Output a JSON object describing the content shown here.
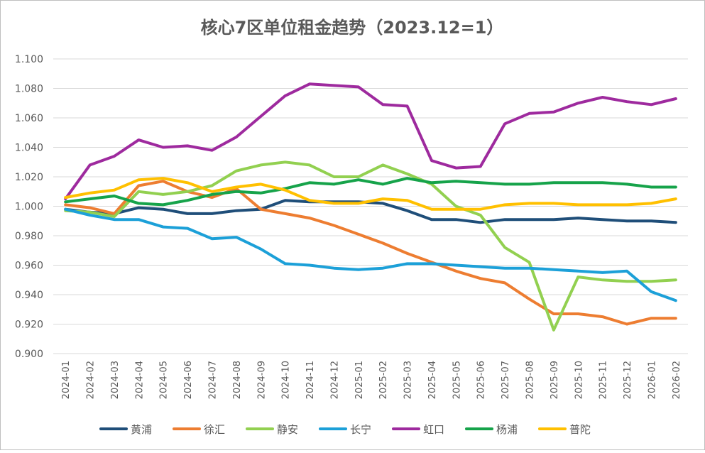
{
  "chart_data": {
    "type": "line",
    "title": "核心7区单位租金趋势（2023.12=1）",
    "xlabel": "",
    "ylabel": "",
    "ylim": [
      0.9,
      1.1
    ],
    "ytick_step": 0.02,
    "ytick_labels": [
      "0.900",
      "0.920",
      "0.940",
      "0.960",
      "0.980",
      "1.000",
      "1.020",
      "1.040",
      "1.060",
      "1.080",
      "1.100"
    ],
    "grid": "horizontal",
    "legend_position": "bottom",
    "categories": [
      "2024-01",
      "2024-02",
      "2024-03",
      "2024-04",
      "2024-05",
      "2024-06",
      "2024-07",
      "2024-08",
      "2024-09",
      "2024-10",
      "2024-11",
      "2024-12",
      "2025-01",
      "2025-02",
      "2025-03",
      "2025-04",
      "2025-05",
      "2025-06",
      "2025-07",
      "2025-08",
      "2025-09",
      "2025-10",
      "2025-11",
      "2025-12",
      "2026-01",
      "2026-02"
    ],
    "series": [
      {
        "name": "黄浦",
        "color": "#1f4e79",
        "values": [
          0.998,
          0.996,
          0.995,
          0.999,
          0.998,
          0.995,
          0.995,
          0.997,
          0.998,
          1.004,
          1.003,
          1.003,
          1.003,
          1.002,
          0.997,
          0.991,
          0.991,
          0.989,
          0.991,
          0.991,
          0.991,
          0.992,
          0.991,
          0.99,
          0.99,
          0.989
        ]
      },
      {
        "name": "徐汇",
        "color": "#ed7d31",
        "values": [
          1.001,
          0.999,
          0.995,
          1.014,
          1.017,
          1.01,
          1.006,
          1.012,
          0.998,
          0.995,
          0.992,
          0.987,
          0.981,
          0.975,
          0.968,
          0.962,
          0.956,
          0.951,
          0.948,
          0.937,
          0.927,
          0.927,
          0.925,
          0.92,
          0.924,
          0.924
        ]
      },
      {
        "name": "静安",
        "color": "#92d050",
        "values": [
          0.997,
          0.996,
          0.993,
          1.01,
          1.008,
          1.01,
          1.014,
          1.024,
          1.028,
          1.03,
          1.028,
          1.02,
          1.02,
          1.028,
          1.022,
          1.015,
          1.0,
          0.994,
          0.972,
          0.962,
          0.916,
          0.952,
          0.95,
          0.949,
          0.949,
          0.95
        ]
      },
      {
        "name": "长宁",
        "color": "#1ca0d8",
        "values": [
          0.998,
          0.994,
          0.991,
          0.991,
          0.986,
          0.985,
          0.978,
          0.979,
          0.971,
          0.961,
          0.96,
          0.958,
          0.957,
          0.958,
          0.961,
          0.961,
          0.96,
          0.959,
          0.958,
          0.958,
          0.957,
          0.956,
          0.955,
          0.956,
          0.942,
          0.936
        ]
      },
      {
        "name": "虹口",
        "color": "#9e2a9e",
        "values": [
          1.005,
          1.028,
          1.034,
          1.045,
          1.04,
          1.041,
          1.038,
          1.047,
          1.061,
          1.075,
          1.083,
          1.082,
          1.081,
          1.069,
          1.068,
          1.031,
          1.026,
          1.027,
          1.056,
          1.063,
          1.064,
          1.07,
          1.074,
          1.071,
          1.069,
          1.073
        ]
      },
      {
        "name": "杨浦",
        "color": "#16a34a",
        "values": [
          1.003,
          1.005,
          1.007,
          1.002,
          1.001,
          1.004,
          1.008,
          1.01,
          1.009,
          1.012,
          1.016,
          1.015,
          1.018,
          1.015,
          1.019,
          1.016,
          1.017,
          1.016,
          1.015,
          1.015,
          1.016,
          1.016,
          1.016,
          1.015,
          1.013,
          1.013
        ]
      },
      {
        "name": "普陀",
        "color": "#ffc000",
        "values": [
          1.006,
          1.009,
          1.011,
          1.018,
          1.019,
          1.016,
          1.01,
          1.013,
          1.015,
          1.011,
          1.004,
          1.002,
          1.002,
          1.005,
          1.004,
          0.998,
          0.998,
          0.998,
          1.001,
          1.002,
          1.002,
          1.001,
          1.001,
          1.001,
          1.002,
          1.005
        ]
      }
    ]
  }
}
